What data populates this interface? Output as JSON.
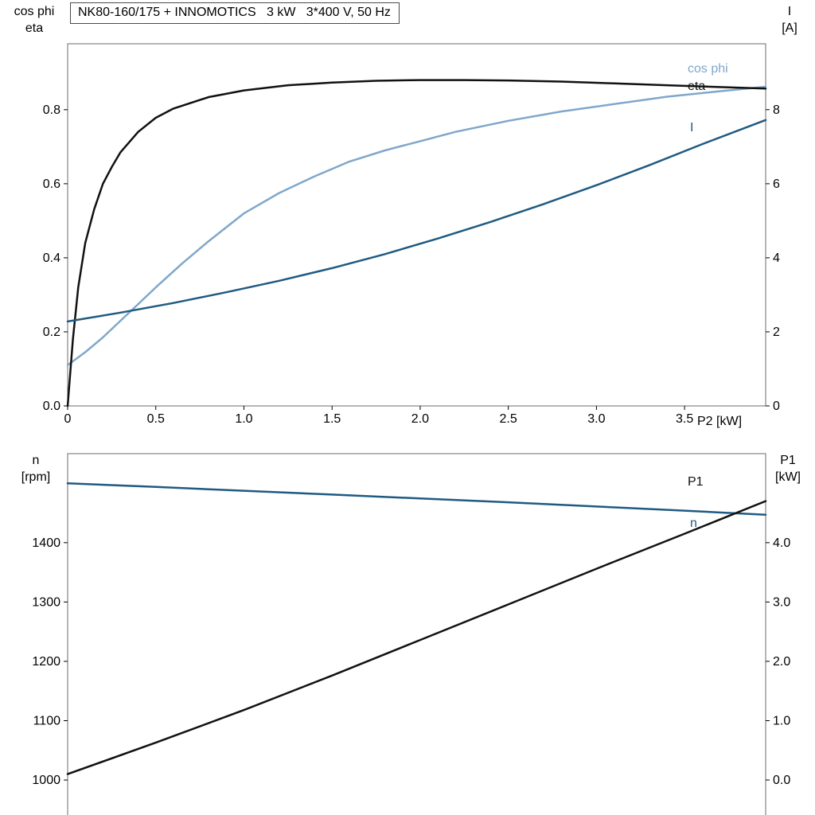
{
  "chart_data": [
    {
      "id": "upper-performance-chart",
      "type": "line",
      "title": "NK80-160/175 + INNOMOTICS   3 kW   3*400 V, 50 Hz",
      "grid": false,
      "legend": "curve-end-labels",
      "frame_color": "#6b6b6b",
      "tick_color": "#000000",
      "x_axis": {
        "label": "P2 [kW]",
        "range": [
          0,
          3.96
        ],
        "ticks": [
          0,
          0.5,
          1,
          1.5,
          2,
          2.5,
          3,
          3.5
        ],
        "tick_labels": [
          "0",
          "0.5",
          "1.0",
          "1.5",
          "2.0",
          "2.5",
          "3.0",
          "3.5"
        ]
      },
      "left_axis": {
        "label_lines": [
          "cos phi",
          "eta"
        ],
        "range": [
          0,
          0.978
        ],
        "ticks": [
          0,
          0.2,
          0.4,
          0.6,
          0.8
        ],
        "tick_labels": [
          "0.0",
          "0.2",
          "0.4",
          "0.6",
          "0.8"
        ]
      },
      "right_axis": {
        "label_lines": [
          "I",
          "[A]"
        ],
        "range": [
          0,
          9.78
        ],
        "ticks": [
          0,
          2,
          4,
          6,
          8
        ],
        "tick_labels": [
          "0",
          "2",
          "4",
          "6",
          "8"
        ]
      },
      "series": [
        {
          "name": "cos phi",
          "axis": "left",
          "color": "#7fa7cb",
          "x": [
            0,
            0.1,
            0.2,
            0.3,
            0.4,
            0.5,
            0.65,
            0.8,
            1.0,
            1.2,
            1.4,
            1.6,
            1.8,
            2.0,
            2.2,
            2.5,
            2.8,
            3.1,
            3.4,
            3.7,
            3.96
          ],
          "y": [
            0.11,
            0.145,
            0.185,
            0.23,
            0.275,
            0.32,
            0.385,
            0.445,
            0.52,
            0.575,
            0.62,
            0.66,
            0.69,
            0.715,
            0.74,
            0.77,
            0.795,
            0.815,
            0.835,
            0.85,
            0.862
          ]
        },
        {
          "name": "eta",
          "axis": "left",
          "color": "#111111",
          "x": [
            0,
            0.03,
            0.06,
            0.1,
            0.15,
            0.2,
            0.25,
            0.3,
            0.4,
            0.5,
            0.6,
            0.8,
            1.0,
            1.25,
            1.5,
            1.75,
            2.0,
            2.25,
            2.5,
            2.8,
            3.1,
            3.4,
            3.7,
            3.96
          ],
          "y": [
            0,
            0.18,
            0.32,
            0.44,
            0.53,
            0.6,
            0.645,
            0.685,
            0.74,
            0.778,
            0.803,
            0.834,
            0.852,
            0.866,
            0.873,
            0.878,
            0.88,
            0.88,
            0.879,
            0.876,
            0.871,
            0.866,
            0.861,
            0.857
          ]
        },
        {
          "name": "I",
          "axis": "right",
          "color": "#1f5a82",
          "x": [
            0,
            0.3,
            0.6,
            0.9,
            1.2,
            1.5,
            1.8,
            2.1,
            2.4,
            2.7,
            3.0,
            3.3,
            3.6,
            3.96
          ],
          "y": [
            2.28,
            2.52,
            2.78,
            3.07,
            3.38,
            3.72,
            4.1,
            4.52,
            4.97,
            5.45,
            5.96,
            6.5,
            7.07,
            7.72
          ]
        }
      ]
    },
    {
      "id": "lower-performance-chart",
      "type": "line",
      "title": "",
      "grid": false,
      "legend": "curve-end-labels",
      "frame_color": "#6b6b6b",
      "tick_color": "#000000",
      "x_axis": {
        "label": "",
        "range": [
          0,
          3.96
        ],
        "ticks": [],
        "tick_labels": []
      },
      "left_axis": {
        "label_lines": [
          "n",
          "[rpm]"
        ],
        "range": [
          933,
          1550
        ],
        "ticks": [
          1000,
          1100,
          1200,
          1300,
          1400
        ],
        "tick_labels": [
          "1000",
          "1100",
          "1200",
          "1300",
          "1400"
        ]
      },
      "right_axis": {
        "label_lines": [
          "P1",
          "[kW]"
        ],
        "range": [
          -0.67,
          5.5
        ],
        "ticks": [
          0,
          1,
          2,
          3,
          4
        ],
        "tick_labels": [
          "0.0",
          "1.0",
          "2.0",
          "3.0",
          "4.0"
        ]
      },
      "series": [
        {
          "name": "n",
          "axis": "left",
          "color": "#1f5a82",
          "x": [
            0,
            0.5,
            1.0,
            1.5,
            2.0,
            2.5,
            3.0,
            3.5,
            3.96
          ],
          "y": [
            1500,
            1494,
            1487.5,
            1481,
            1474.5,
            1468,
            1461,
            1454,
            1447
          ]
        },
        {
          "name": "P1",
          "axis": "right",
          "color": "#111111",
          "x": [
            0,
            0.5,
            1.0,
            1.5,
            2.0,
            2.5,
            3.0,
            3.5,
            3.96
          ],
          "y": [
            0.1,
            0.63,
            1.18,
            1.76,
            2.36,
            2.96,
            3.56,
            4.15,
            4.7
          ]
        }
      ]
    }
  ]
}
